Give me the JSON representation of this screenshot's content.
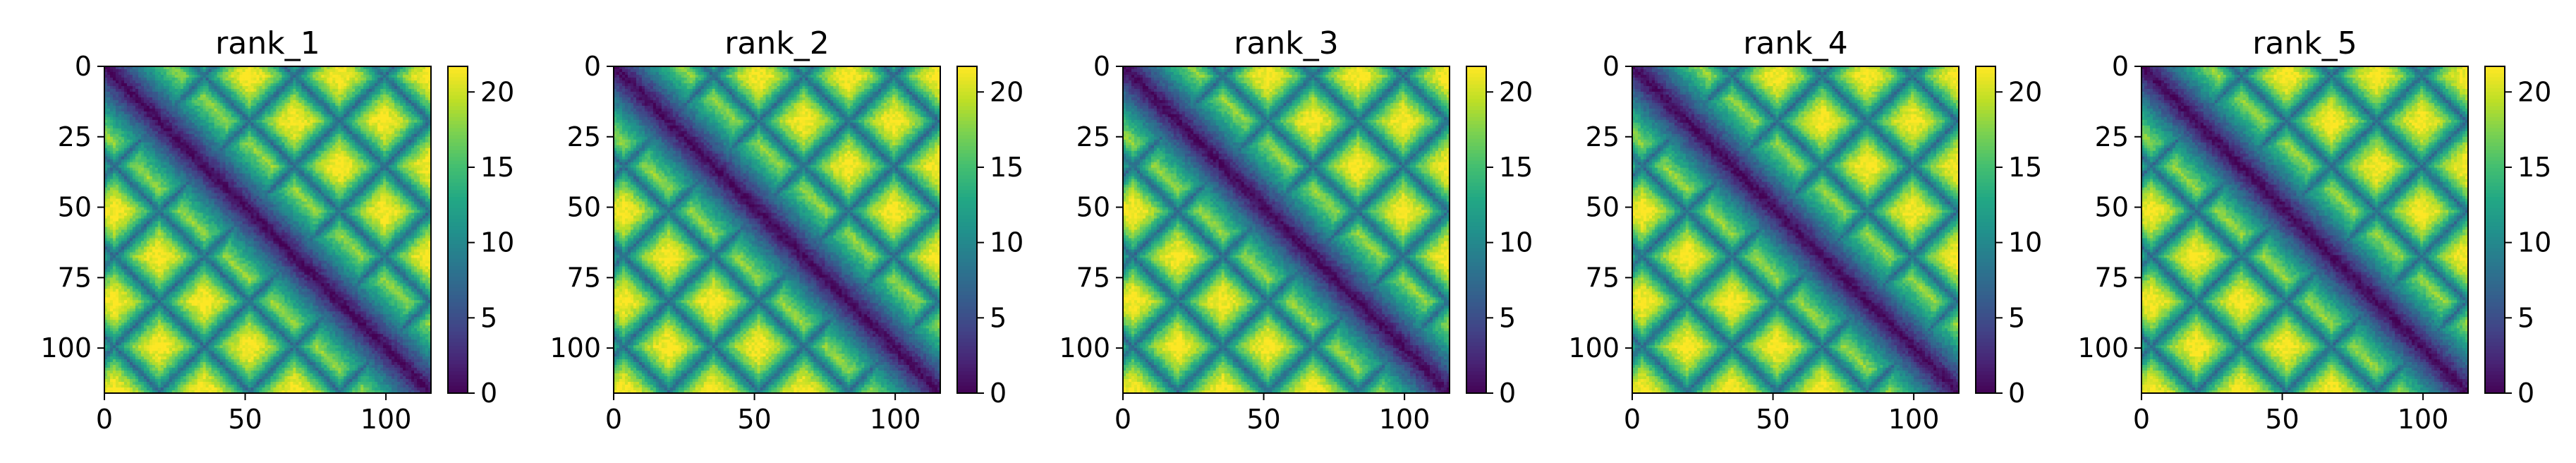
{
  "figure": {
    "panel_count": 5
  },
  "chart_data": [
    {
      "type": "heatmap",
      "title": "rank_1",
      "n": 116,
      "xticks": [
        0,
        50,
        100
      ],
      "yticks": [
        0,
        25,
        50,
        75,
        100
      ],
      "xlim": [
        0,
        116
      ],
      "ylim": [
        116,
        0
      ],
      "colorbar": {
        "min": 0,
        "max": 21.7,
        "ticks": [
          0,
          5,
          10,
          15,
          20
        ],
        "colormap": "viridis"
      },
      "style": {
        "cap": 21.7,
        "pattern": "diagonal-lattice",
        "band_width": 4.2,
        "lattice_period": 32,
        "lattice_offset": 10,
        "lattice_strength": 7.5,
        "jitter_seed": 11
      }
    },
    {
      "type": "heatmap",
      "title": "rank_2",
      "n": 116,
      "xticks": [
        0,
        50,
        100
      ],
      "yticks": [
        0,
        25,
        50,
        75,
        100
      ],
      "xlim": [
        0,
        116
      ],
      "ylim": [
        116,
        0
      ],
      "colorbar": {
        "min": 0,
        "max": 21.7,
        "ticks": [
          0,
          5,
          10,
          15,
          20
        ],
        "colormap": "viridis"
      },
      "style": {
        "cap": 21.7,
        "pattern": "diagonal-lattice",
        "band_width": 4.2,
        "lattice_period": 32,
        "lattice_offset": 10,
        "lattice_strength": 7.5,
        "jitter_seed": 23
      }
    },
    {
      "type": "heatmap",
      "title": "rank_3",
      "n": 116,
      "xticks": [
        0,
        50,
        100
      ],
      "yticks": [
        0,
        25,
        50,
        75,
        100
      ],
      "xlim": [
        0,
        116
      ],
      "ylim": [
        116,
        0
      ],
      "colorbar": {
        "min": 0,
        "max": 21.7,
        "ticks": [
          0,
          5,
          10,
          15,
          20
        ],
        "colormap": "viridis"
      },
      "style": {
        "cap": 21.7,
        "pattern": "diagonal-lattice",
        "band_width": 4.2,
        "lattice_period": 32,
        "lattice_offset": 10,
        "lattice_strength": 7.5,
        "jitter_seed": 37
      }
    },
    {
      "type": "heatmap",
      "title": "rank_4",
      "n": 116,
      "xticks": [
        0,
        50,
        100
      ],
      "yticks": [
        0,
        25,
        50,
        75,
        100
      ],
      "xlim": [
        0,
        116
      ],
      "ylim": [
        116,
        0
      ],
      "colorbar": {
        "min": 0,
        "max": 21.7,
        "ticks": [
          0,
          5,
          10,
          15,
          20
        ],
        "colormap": "viridis"
      },
      "style": {
        "cap": 21.7,
        "pattern": "diagonal-lattice",
        "band_width": 4.2,
        "lattice_period": 32,
        "lattice_offset": 10,
        "lattice_strength": 7.5,
        "jitter_seed": 41
      }
    },
    {
      "type": "heatmap",
      "title": "rank_5",
      "n": 116,
      "xticks": [
        0,
        50,
        100
      ],
      "yticks": [
        0,
        25,
        50,
        75,
        100
      ],
      "xlim": [
        0,
        116
      ],
      "ylim": [
        116,
        0
      ],
      "colorbar": {
        "min": 0,
        "max": 21.7,
        "ticks": [
          0,
          5,
          10,
          15,
          20
        ],
        "colormap": "viridis"
      },
      "style": {
        "cap": 21.7,
        "pattern": "diagonal-lattice",
        "band_width": 4.2,
        "lattice_period": 32,
        "lattice_offset": 10,
        "lattice_strength": 7.5,
        "jitter_seed": 53
      }
    }
  ]
}
